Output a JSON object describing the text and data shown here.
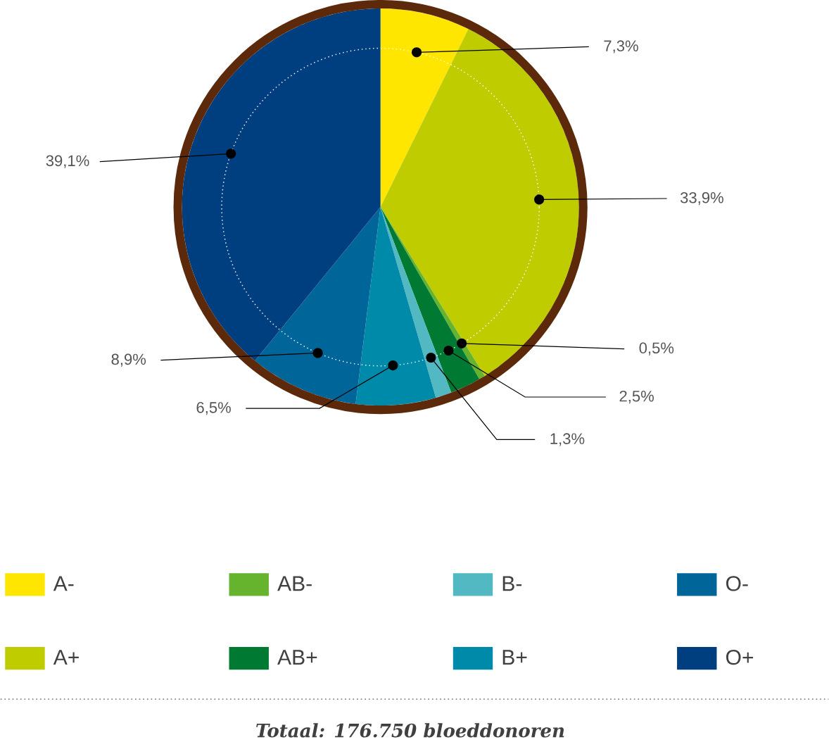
{
  "chart_data": {
    "type": "pie",
    "categories": [
      "A-",
      "A+",
      "AB-",
      "AB+",
      "B-",
      "B+",
      "O-",
      "O+"
    ],
    "values": [
      7.3,
      33.9,
      0.5,
      2.5,
      1.3,
      6.5,
      8.9,
      39.1
    ],
    "value_labels": [
      "7,3%",
      "33,9%",
      "0,5%",
      "2,5%",
      "1,3%",
      "6,5%",
      "8,9%",
      "39,1%"
    ],
    "colors": [
      "#ffe600",
      "#bfcc00",
      "#66b32e",
      "#007a33",
      "#52b8c1",
      "#008aa9",
      "#006699",
      "#003f7f"
    ],
    "legend": "bottom",
    "annotations": [
      "Totaal: 176.750 bloeddonoren"
    ]
  }
}
